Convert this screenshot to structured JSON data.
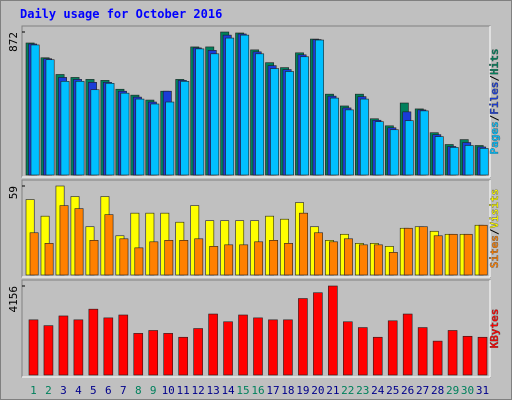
{
  "chart_data": {
    "type": "bar",
    "title": "Daily usage for October 2016",
    "categories": [
      "1",
      "2",
      "3",
      "4",
      "5",
      "6",
      "7",
      "8",
      "9",
      "10",
      "11",
      "12",
      "13",
      "14",
      "15",
      "16",
      "17",
      "18",
      "19",
      "20",
      "21",
      "22",
      "23",
      "24",
      "25",
      "26",
      "27",
      "28",
      "29",
      "30",
      "31"
    ],
    "category_colors": [
      "#00805c",
      "#00805c",
      "#00008b",
      "#00008b",
      "#00008b",
      "#00008b",
      "#00008b",
      "#00805c",
      "#00805c",
      "#00008b",
      "#00008b",
      "#00008b",
      "#00008b",
      "#00008b",
      "#00805c",
      "#00805c",
      "#00008b",
      "#00008b",
      "#00008b",
      "#00008b",
      "#00008b",
      "#00805c",
      "#00805c",
      "#00008b",
      "#00008b",
      "#00008b",
      "#00008b",
      "#00008b",
      "#00805c",
      "#00805c",
      "#00008b"
    ],
    "separator": "/",
    "panels": [
      {
        "ylim": [
          0,
          872
        ],
        "yticks": [
          872
        ],
        "series": [
          {
            "name": "Hits",
            "color": "#00805c",
            "values": [
              805,
              715,
              613,
              595,
              583,
              577,
              523,
              487,
              457,
              511,
              583,
              781,
              781,
              872,
              866,
              763,
              685,
              655,
              745,
              829,
              493,
              421,
              493,
              343,
              300,
              439,
              403,
              258,
              186,
              216,
              180
            ]
          },
          {
            "name": "Files",
            "color": "#1a3cd8",
            "values": [
              799,
              709,
              595,
              583,
              565,
              565,
              511,
              475,
              445,
              511,
              577,
              775,
              760,
              853,
              860,
              751,
              667,
              643,
              733,
              826,
              481,
              409,
              478,
              334,
              288,
              385,
              397,
              246,
              174,
              198,
              171
            ]
          },
          {
            "name": "Pages",
            "color": "#00c0ff",
            "values": [
              793,
              703,
              571,
              571,
              520,
              559,
              499,
              463,
              433,
              445,
              571,
              769,
              739,
              835,
              853,
              739,
              649,
              631,
              721,
              823,
              469,
              397,
              463,
              325,
              276,
              331,
              391,
              234,
              168,
              180,
              162
            ]
          }
        ]
      },
      {
        "ylim": [
          0,
          59
        ],
        "yticks": [
          59
        ],
        "series": [
          {
            "name": "Visits",
            "color": "#ffff00",
            "values": [
              50,
              39,
              59,
              52,
              32,
              52,
              26,
              41,
              41,
              41,
              35,
              46,
              36,
              36,
              36,
              36,
              39,
              37,
              48,
              32,
              23,
              27,
              21,
              21,
              19,
              31,
              32,
              29,
              27,
              27,
              33
            ]
          },
          {
            "name": "Sites",
            "color": "#ff8000",
            "values": [
              28,
              21,
              46,
              44,
              23,
              40,
              24,
              18,
              22,
              23,
              23,
              24,
              19,
              20,
              20,
              22,
              23,
              21,
              41,
              28,
              22,
              24,
              20,
              20,
              15,
              31,
              32,
              26,
              27,
              27,
              33
            ]
          }
        ]
      },
      {
        "ylim": [
          0,
          4156
        ],
        "yticks": [
          4156
        ],
        "series": [
          {
            "name": "KBytes",
            "color": "#ff0000",
            "values": [
              2576,
              2305,
              2757,
              2576,
              3074,
              2667,
              2802,
              1944,
              2079,
              1944,
              1763,
              2170,
              2847,
              2486,
              2802,
              2667,
              2576,
              2576,
              3571,
              3842,
              4156,
              2486,
              2215,
              1763,
              2531,
              2847,
              2215,
              1582,
              2079,
              1808,
              1763
            ]
          }
        ]
      }
    ]
  }
}
